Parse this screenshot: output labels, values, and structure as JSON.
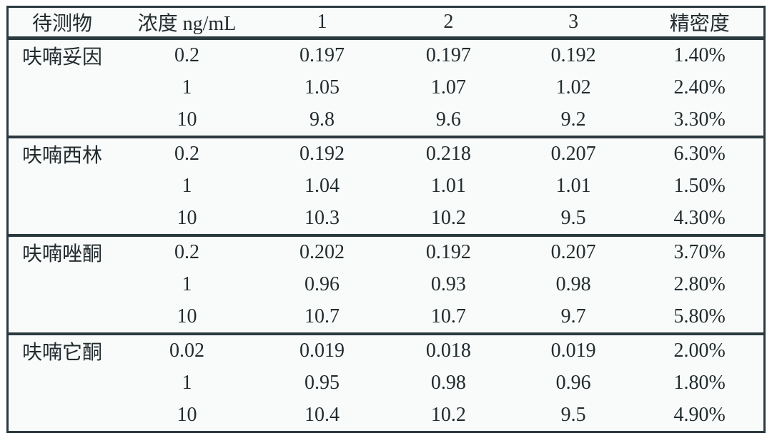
{
  "table": {
    "headers": [
      "待测物",
      "浓度 ng/mL",
      "1",
      "2",
      "3",
      "精密度"
    ],
    "groups": [
      {
        "analyte": "呋喃妥因",
        "rows": [
          {
            "concentration": "0.2",
            "values": [
              "0.197",
              "0.197",
              "0.192"
            ],
            "precision": "1.40%"
          },
          {
            "concentration": "1",
            "values": [
              "1.05",
              "1.07",
              "1.02"
            ],
            "precision": "2.40%"
          },
          {
            "concentration": "10",
            "values": [
              "9.8",
              "9.6",
              "9.2"
            ],
            "precision": "3.30%"
          }
        ]
      },
      {
        "analyte": "呋喃西林",
        "rows": [
          {
            "concentration": "0.2",
            "values": [
              "0.192",
              "0.218",
              "0.207"
            ],
            "precision": "6.30%"
          },
          {
            "concentration": "1",
            "values": [
              "1.04",
              "1.01",
              "1.01"
            ],
            "precision": "1.50%"
          },
          {
            "concentration": "10",
            "values": [
              "10.3",
              "10.2",
              "9.5"
            ],
            "precision": "4.30%"
          }
        ]
      },
      {
        "analyte": "呋喃唑酮",
        "rows": [
          {
            "concentration": "0.2",
            "values": [
              "0.202",
              "0.192",
              "0.207"
            ],
            "precision": "3.70%"
          },
          {
            "concentration": "1",
            "values": [
              "0.96",
              "0.93",
              "0.98"
            ],
            "precision": "2.80%"
          },
          {
            "concentration": "10",
            "values": [
              "10.7",
              "10.7",
              "9.7"
            ],
            "precision": "5.80%"
          }
        ]
      },
      {
        "analyte": "呋喃它酮",
        "rows": [
          {
            "concentration": "0.02",
            "values": [
              "0.019",
              "0.018",
              "0.019"
            ],
            "precision": "2.00%"
          },
          {
            "concentration": "1",
            "values": [
              "0.95",
              "0.98",
              "0.96"
            ],
            "precision": "1.80%"
          },
          {
            "concentration": "10",
            "values": [
              "10.4",
              "10.2",
              "9.5"
            ],
            "precision": "4.90%"
          }
        ]
      }
    ]
  },
  "colors": {
    "border": "#2b3a3f",
    "text": "#222b2e",
    "table_background": "#f9fbfa",
    "page_background": "#ffffff"
  }
}
